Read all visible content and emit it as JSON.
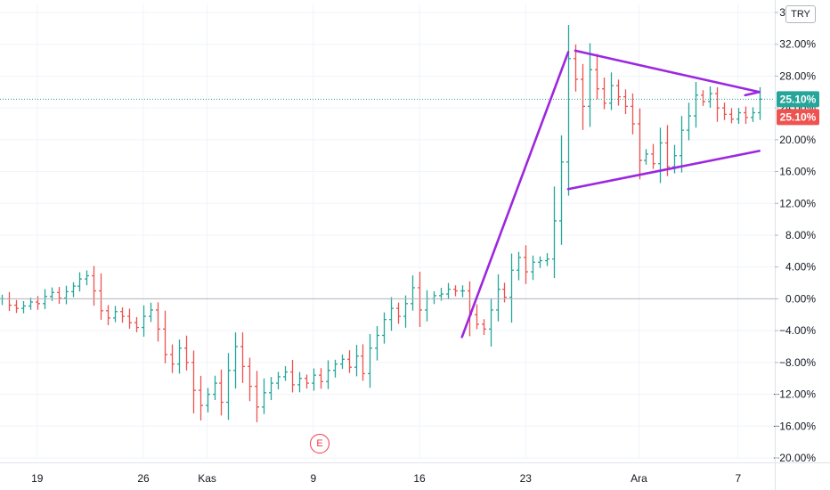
{
  "chart_data": {
    "type": "ohlc",
    "title": "",
    "xlabel": "",
    "ylabel": "",
    "currency": "TRY",
    "ylim": [
      -20,
      36
    ],
    "y_ticks": [
      36,
      32,
      28,
      24,
      20,
      16,
      12,
      8,
      4,
      0,
      -4,
      -8,
      -12,
      -16,
      -20
    ],
    "y_tick_labels": [
      "36.00%",
      "32.00%",
      "28.00%",
      "24.00%",
      "20.00%",
      "16.00%",
      "12.00%",
      "8.00%",
      "4.00%",
      "0.00%",
      "−4.00%",
      "−8.00%",
      "−12.00%",
      "−16.00%",
      "−20.00%"
    ],
    "x_ticks": [
      {
        "index": 5,
        "label": "19"
      },
      {
        "index": 20,
        "label": "26"
      },
      {
        "index": 29,
        "label": "Kas"
      },
      {
        "index": 44,
        "label": "9"
      },
      {
        "index": 59,
        "label": "16"
      },
      {
        "index": 74,
        "label": "23"
      },
      {
        "index": 90,
        "label": "Ara"
      },
      {
        "index": 104,
        "label": "7"
      }
    ],
    "bar_count": 108,
    "last_value_labels": [
      {
        "text": "25.10%",
        "value": 25.1,
        "color": "#26a69a"
      },
      {
        "text": "25.10%",
        "value": 25.1,
        "color": "#ef5350"
      }
    ],
    "reference_line": {
      "value": 25.1,
      "color": "#26a69a",
      "style": "dotted"
    },
    "zero_line": 0,
    "event_marker": {
      "index": 44,
      "label": "E",
      "color": "#f23645"
    },
    "trendlines": [
      {
        "from": [
          65,
          -4.8
        ],
        "to": [
          80,
          31.0
        ],
        "color": "#9c27e0"
      },
      {
        "from": [
          81,
          31.2
        ],
        "to": [
          107,
          26.0
        ],
        "color": "#9c27e0"
      },
      {
        "from": [
          80,
          13.8
        ],
        "to": [
          107,
          18.6
        ],
        "color": "#9c27e0"
      },
      {
        "from": [
          105,
          25.6
        ],
        "to": [
          107,
          26.0
        ],
        "color": "#9c27e0"
      }
    ],
    "colors": {
      "up": "#26a69a",
      "down": "#ef5350"
    },
    "series": [
      {
        "c": 0.0
      },
      {
        "c": -0.8
      },
      {
        "c": -1.2
      },
      {
        "c": -0.9
      },
      {
        "c": -0.4
      },
      {
        "c": -0.6
      },
      {
        "c": 0.3
      },
      {
        "c": 0.8
      },
      {
        "c": 0.1
      },
      {
        "c": 0.9
      },
      {
        "c": 1.6
      },
      {
        "c": 2.5
      },
      {
        "c": 2.9
      },
      {
        "c": 1.0
      },
      {
        "c": -1.5
      },
      {
        "c": -2.4
      },
      {
        "c": -1.6
      },
      {
        "c": -2.2
      },
      {
        "c": -3.0
      },
      {
        "c": -3.6
      },
      {
        "c": -2.2
      },
      {
        "c": -1.4
      },
      {
        "c": -3.8
      },
      {
        "c": -7.0
      },
      {
        "c": -8.2
      },
      {
        "c": -6.2
      },
      {
        "c": -8.0
      },
      {
        "c": -11.5
      },
      {
        "c": -13.4
      },
      {
        "c": -12.0
      },
      {
        "c": -10.6
      },
      {
        "c": -13.0
      },
      {
        "c": -9.0
      },
      {
        "c": -6.0
      },
      {
        "c": -8.5
      },
      {
        "c": -11.0
      },
      {
        "c": -13.6
      },
      {
        "c": -11.8
      },
      {
        "c": -10.6
      },
      {
        "c": -9.8
      },
      {
        "c": -9.2
      },
      {
        "c": -10.8
      },
      {
        "c": -10.0
      },
      {
        "c": -10.6
      },
      {
        "c": -9.6
      },
      {
        "c": -10.4
      },
      {
        "c": -9.0
      },
      {
        "c": -8.2
      },
      {
        "c": -7.6
      },
      {
        "c": -8.6
      },
      {
        "c": -7.2
      },
      {
        "c": -9.4
      },
      {
        "c": -6.2
      },
      {
        "c": -4.6
      },
      {
        "c": -2.6
      },
      {
        "c": -1.2
      },
      {
        "c": -2.2
      },
      {
        "c": -0.6
      },
      {
        "c": 1.4
      },
      {
        "c": -1.4
      },
      {
        "c": 0.0
      },
      {
        "c": 0.4
      },
      {
        "c": 0.6
      },
      {
        "c": 1.2
      },
      {
        "c": 1.0
      },
      {
        "c": 1.0
      },
      {
        "c": -2.0
      },
      {
        "c": -3.2
      },
      {
        "c": -3.8
      },
      {
        "c": -1.4
      },
      {
        "c": 1.2
      },
      {
        "c": 0.2
      },
      {
        "c": 3.6
      },
      {
        "c": 5.2
      },
      {
        "c": 3.4
      },
      {
        "c": 4.6
      },
      {
        "c": 4.8
      },
      {
        "c": 5.0
      },
      {
        "c": 9.8
      },
      {
        "c": 17.2
      },
      {
        "c": 30.2
      },
      {
        "c": 27.6
      },
      {
        "c": 24.2
      },
      {
        "c": 28.8
      },
      {
        "c": 26.4
      },
      {
        "c": 24.6
      },
      {
        "c": 26.8
      },
      {
        "c": 25.4
      },
      {
        "c": 24.2
      },
      {
        "c": 22.0
      },
      {
        "c": 17.4
      },
      {
        "c": 18.2
      },
      {
        "c": 17.0
      },
      {
        "c": 19.6
      },
      {
        "c": 16.6
      },
      {
        "c": 18.0
      },
      {
        "c": 21.2
      },
      {
        "c": 23.0
      },
      {
        "c": 25.6
      },
      {
        "c": 24.8
      },
      {
        "c": 25.8
      },
      {
        "c": 24.0
      },
      {
        "c": 23.2
      },
      {
        "c": 22.6
      },
      {
        "c": 23.4
      },
      {
        "c": 22.8
      },
      {
        "c": 23.4
      },
      {
        "c": 25.1
      }
    ]
  }
}
